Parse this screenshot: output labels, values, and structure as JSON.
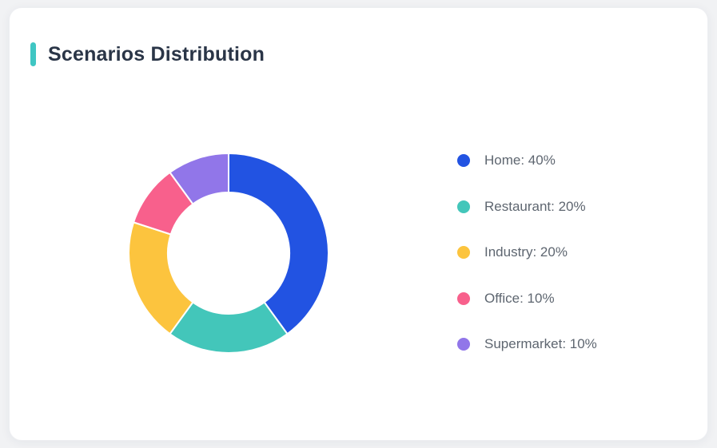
{
  "page": {
    "background_color": "#F1F2F4",
    "card_background_color": "#FFFFFF"
  },
  "card": {
    "title": "Scenarios Distribution",
    "accent_color": "#3FC6C3"
  },
  "chart_data": {
    "type": "pie",
    "subtype": "donut",
    "title": "Scenarios Distribution",
    "categories": [
      "Home",
      "Restaurant",
      "Industry",
      "Office",
      "Supermarket"
    ],
    "values": [
      40,
      20,
      20,
      10,
      10
    ],
    "unit": "%",
    "colors": [
      "#2253E2",
      "#43C6BA",
      "#FCC43E",
      "#F8608C",
      "#9176E9"
    ],
    "legend_items": [
      "Home: 40%",
      "Restaurant: 20%",
      "Industry: 20%",
      "Office: 10%",
      "Supermarket: 10%"
    ],
    "legend_position": "right",
    "start_at": "top",
    "direction": "clockwise",
    "inner_radius_ratio": 0.61,
    "segment_border_color": "#FFFFFF",
    "segment_border_width": 2
  }
}
